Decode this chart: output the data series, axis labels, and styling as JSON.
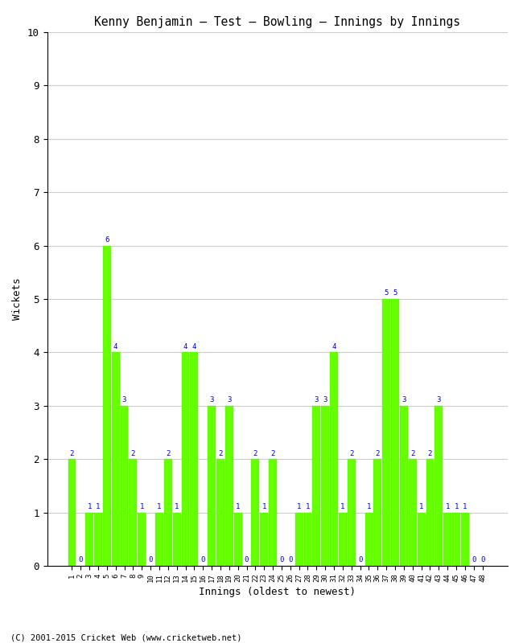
{
  "title": "Kenny Benjamin – Test – Bowling – Innings by Innings",
  "xlabel": "Innings (oldest to newest)",
  "ylabel": "Wickets",
  "ylim": [
    0,
    10
  ],
  "yticks": [
    0,
    1,
    2,
    3,
    4,
    5,
    6,
    7,
    8,
    9,
    10
  ],
  "bar_color": "#66FF00",
  "bar_edge_color": "#55EE00",
  "label_color": "#0000CC",
  "background_color": "#FFFFFF",
  "grid_color": "#CCCCCC",
  "footer": "(C) 2001-2015 Cricket Web (www.cricketweb.net)",
  "innings": [
    1,
    2,
    3,
    4,
    5,
    6,
    7,
    8,
    9,
    10,
    11,
    12,
    13,
    14,
    15,
    16,
    17,
    18,
    19,
    20,
    21,
    22,
    23,
    24,
    25,
    26,
    27,
    28,
    29,
    30,
    31,
    32,
    33,
    34,
    35,
    36,
    37,
    38,
    39,
    40,
    41,
    42,
    43,
    44,
    45,
    46,
    47,
    48
  ],
  "wickets": [
    2,
    0,
    1,
    1,
    6,
    4,
    3,
    2,
    1,
    0,
    1,
    2,
    1,
    4,
    4,
    0,
    3,
    2,
    3,
    1,
    0,
    2,
    1,
    2,
    0,
    0,
    1,
    1,
    3,
    3,
    4,
    1,
    2,
    0,
    1,
    2,
    5,
    5,
    3,
    2,
    1,
    2,
    3,
    1,
    1,
    1,
    0,
    0
  ]
}
